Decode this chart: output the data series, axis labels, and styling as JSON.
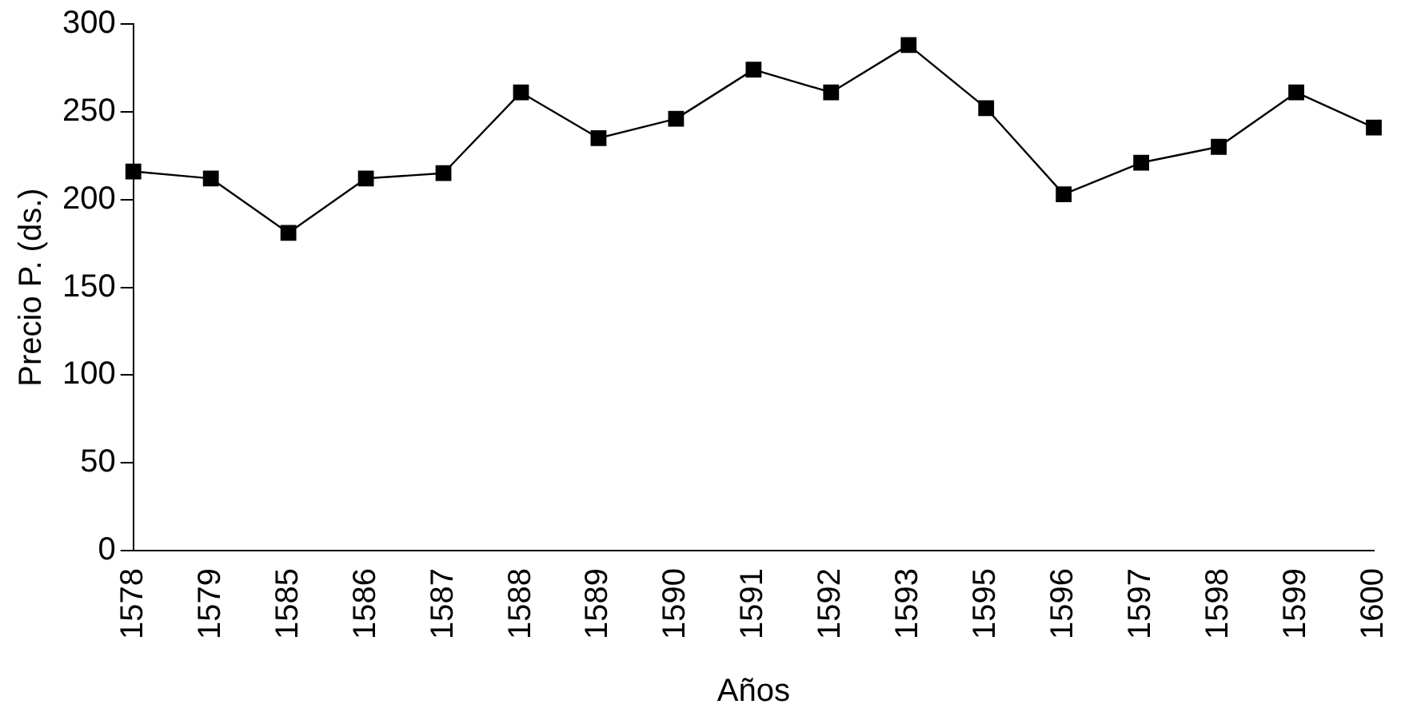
{
  "chart_data": {
    "type": "line",
    "xlabel": "Años",
    "ylabel": "Precio P. (ds.)",
    "categories": [
      "1578",
      "1579",
      "1585",
      "1586",
      "1587",
      "1588",
      "1589",
      "1590",
      "1591",
      "1592",
      "1593",
      "1595",
      "1596",
      "1597",
      "1598",
      "1599",
      "1600"
    ],
    "series": [
      {
        "color": "#000000",
        "values": [
          216,
          212,
          181,
          212,
          215,
          261,
          235,
          246,
          274,
          261,
          288,
          252,
          203,
          221,
          230,
          261,
          241
        ]
      }
    ],
    "ylim": [
      0,
      300
    ],
    "yticks": [
      0,
      50,
      100,
      150,
      200,
      250,
      300
    ],
    "grid": false,
    "legend": false,
    "marker": "square",
    "line_style": "solid"
  }
}
